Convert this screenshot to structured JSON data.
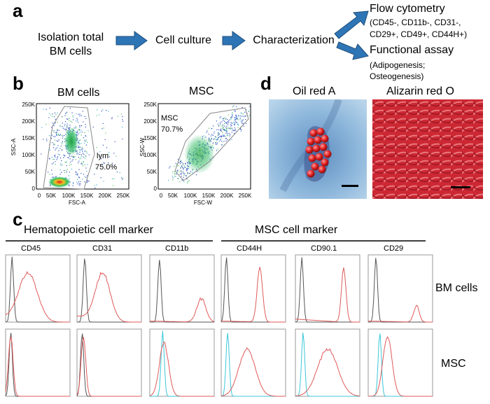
{
  "panels": {
    "a": "a",
    "b": "b",
    "c": "c",
    "d": "d"
  },
  "flow": {
    "isolation_line1": "Isolation total",
    "isolation_line2": "BM cells",
    "culture": "Cell culture",
    "characterization": "Characterization",
    "flow_cytometry": "Flow cytometry",
    "flow_markers_line1": "(CD45-, CD11b-, CD31-,",
    "flow_markers_line2": "CD29+, CD49+, CD44H+)",
    "functional": "Functional assay",
    "functional_line1": "(Adipogenesis;",
    "functional_line2": "Osteogenesis)"
  },
  "scatter": {
    "bm": {
      "title": "BM cells",
      "xlabel": "FSC-A",
      "ylabel": "SSC-A",
      "gate_name": "lym",
      "gate_percent": "75.0%",
      "y_ticks": [
        "250K",
        "200K",
        "150K",
        "100K",
        "50K",
        "0"
      ],
      "x_ticks": [
        "0",
        "50K",
        "100K",
        "150K",
        "200K",
        "250K"
      ]
    },
    "msc": {
      "title": "MSC",
      "xlabel": "FSC-W",
      "ylabel": "SSC-W",
      "gate_name": "MSC",
      "gate_percent": "70.7%",
      "y_ticks": [
        "250K",
        "200K",
        "150K",
        "100K",
        "50K",
        "0"
      ],
      "x_ticks": [
        "0",
        "50K",
        "100K",
        "150K",
        "200K",
        "250K"
      ]
    }
  },
  "stains": {
    "oil": "Oil red A",
    "alizarin": "Alizarin red O"
  },
  "histograms": {
    "hematopoietic_header": "Hematopoietic cell marker",
    "msc_header": "MSC cell marker",
    "markers": [
      "CD45",
      "CD31",
      "CD11b",
      "CD44H",
      "CD90.1",
      "CD29"
    ],
    "rows": [
      "BM cells",
      "MSC"
    ]
  },
  "colors": {
    "arrow": "#2e75b6",
    "isotype_gray": "#555555",
    "stain_red": "#e05a5a",
    "isotype_cyan": "#3cc7d8"
  }
}
